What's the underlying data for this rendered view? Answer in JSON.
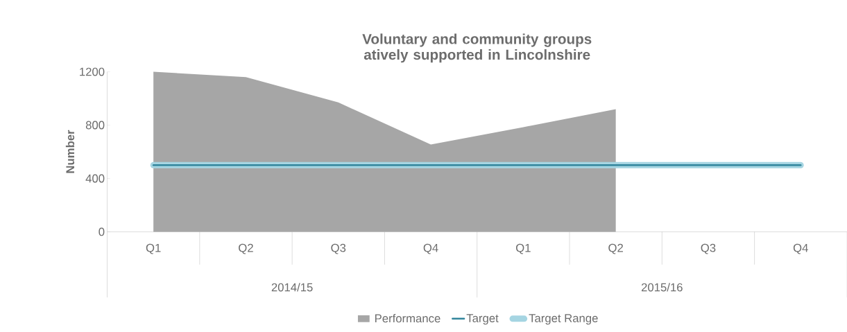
{
  "chart_data": {
    "type": "area",
    "title": "Voluntary and community groups atively supported in Lincolnshire",
    "ylabel": "Number",
    "categories": [
      "Q1",
      "Q2",
      "Q3",
      "Q4",
      "Q1",
      "Q2",
      "Q3",
      "Q4"
    ],
    "series": [
      {
        "name": "Performance",
        "color": "#a6a6a6",
        "values": [
          1200,
          1160,
          970,
          655,
          785,
          920,
          null,
          null
        ]
      },
      {
        "name": "Target",
        "type": "line",
        "color": "#31859c",
        "values": [
          500,
          500,
          500,
          500,
          500,
          500,
          500,
          500
        ]
      },
      {
        "name": "Target Range",
        "type": "line",
        "color": "#a5d5e2",
        "values": [
          500,
          500,
          500,
          500,
          500,
          500,
          500,
          500
        ]
      }
    ],
    "annotations": [
      "2014/15",
      "2015/16"
    ],
    "ylim": [
      0,
      1200
    ],
    "yticks": [
      0,
      400,
      800,
      1200
    ],
    "legend": "bottom",
    "grid": false
  }
}
